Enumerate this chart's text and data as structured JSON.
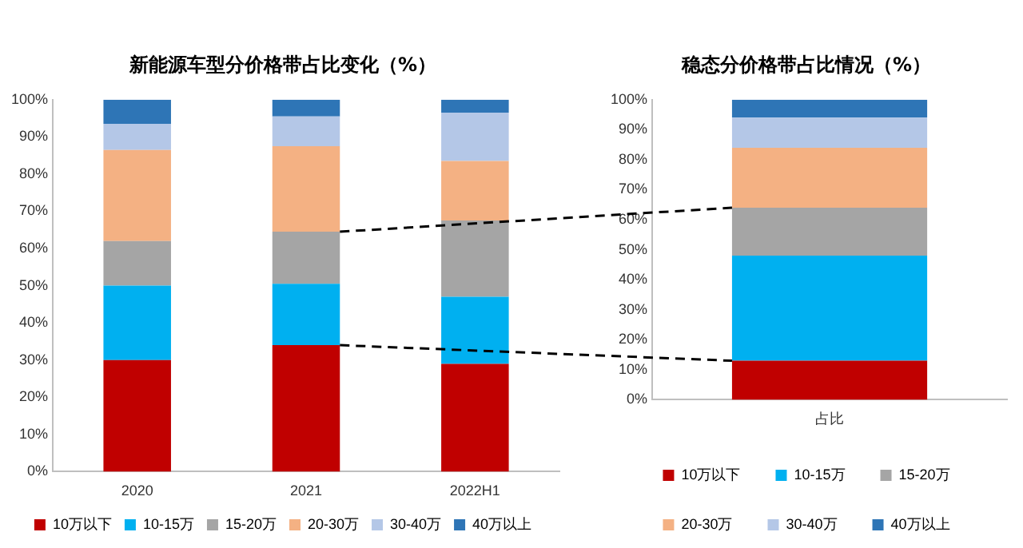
{
  "chart_data": [
    {
      "type": "bar",
      "stacked": true,
      "title": "新能源车型分价格带占比变化（%）",
      "categories": [
        "2020",
        "2021",
        "2022H1"
      ],
      "ylim": [
        0,
        100
      ],
      "yticks": [
        {
          "value": 0,
          "label": "0%"
        },
        {
          "value": 10,
          "label": "10%"
        },
        {
          "value": 20,
          "label": "20%"
        },
        {
          "value": 30,
          "label": "30%"
        },
        {
          "value": 40,
          "label": "40%"
        },
        {
          "value": 50,
          "label": "50%"
        },
        {
          "value": 60,
          "label": "60%"
        },
        {
          "value": 70,
          "label": "70%"
        },
        {
          "value": 80,
          "label": "80%"
        },
        {
          "value": 90,
          "label": "90%"
        },
        {
          "value": 100,
          "label": "100%"
        }
      ],
      "grid": false,
      "legend": "bottom",
      "series": [
        {
          "name": "10万以下",
          "color": "#c00000",
          "values": [
            30,
            34,
            29
          ]
        },
        {
          "name": "10-15万",
          "color": "#00b0f0",
          "values": [
            20,
            16.5,
            18
          ]
        },
        {
          "name": "15-20万",
          "color": "#a5a5a5",
          "values": [
            12,
            14,
            20.5
          ]
        },
        {
          "name": "20-30万",
          "color": "#f4b183",
          "values": [
            24.5,
            23,
            16
          ]
        },
        {
          "name": "30-40万",
          "color": "#b4c7e7",
          "values": [
            7,
            8,
            13
          ]
        },
        {
          "name": "40万以上",
          "color": "#2e75b6",
          "values": [
            6.5,
            4.5,
            3.5
          ]
        }
      ]
    },
    {
      "type": "bar",
      "stacked": true,
      "title": "稳态分价格带占比情况（%）",
      "categories": [
        "占比"
      ],
      "ylim": [
        0,
        100
      ],
      "yticks": [
        {
          "value": 0,
          "label": "0%"
        },
        {
          "value": 10,
          "label": "10%"
        },
        {
          "value": 20,
          "label": "20%"
        },
        {
          "value": 30,
          "label": "30%"
        },
        {
          "value": 40,
          "label": "40%"
        },
        {
          "value": 50,
          "label": "50%"
        },
        {
          "value": 60,
          "label": "60%"
        },
        {
          "value": 70,
          "label": "70%"
        },
        {
          "value": 80,
          "label": "80%"
        },
        {
          "value": 90,
          "label": "90%"
        },
        {
          "value": 100,
          "label": "100%"
        }
      ],
      "grid": false,
      "legend": "bottom",
      "series": [
        {
          "name": "10万以下",
          "color": "#c00000",
          "values": [
            13
          ]
        },
        {
          "name": "10-15万",
          "color": "#00b0f0",
          "values": [
            35
          ]
        },
        {
          "name": "15-20万",
          "color": "#a5a5a5",
          "values": [
            16
          ]
        },
        {
          "name": "20-30万",
          "color": "#f4b183",
          "values": [
            20
          ]
        },
        {
          "name": "30-40万",
          "color": "#b4c7e7",
          "values": [
            10
          ]
        },
        {
          "name": "40万以上",
          "color": "#2e75b6",
          "values": [
            6
          ]
        }
      ]
    }
  ]
}
